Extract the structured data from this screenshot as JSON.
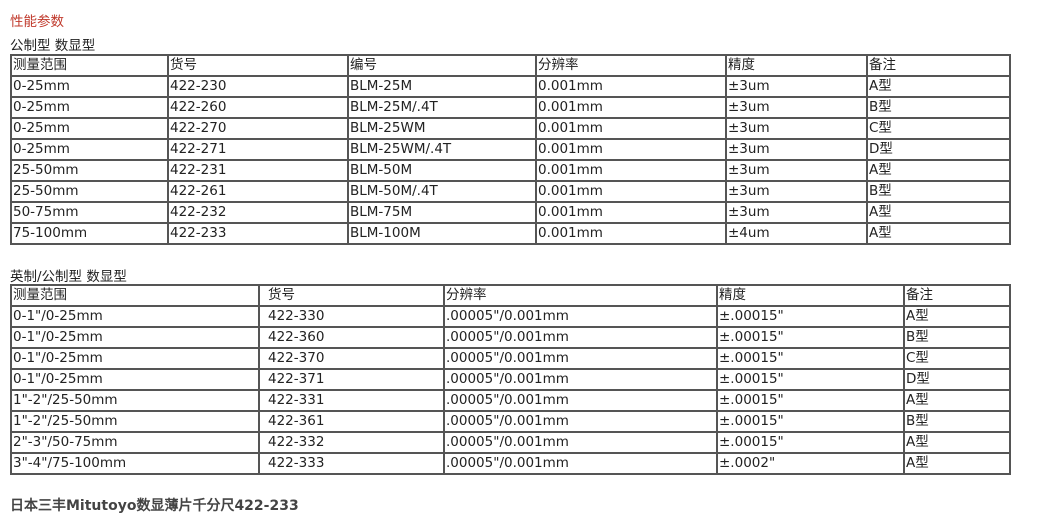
{
  "title": "性能参数",
  "section1": {
    "heading": "公制型 数显型",
    "headers": [
      "测量范围",
      "货号",
      "编号",
      "分辨率",
      "精度",
      "备注"
    ],
    "rows": [
      [
        "0-25mm",
        "422-230",
        "BLM-25M",
        "0.001mm",
        "±3um",
        "A型"
      ],
      [
        "0-25mm",
        "422-260",
        "BLM-25M/.4T",
        "0.001mm",
        "±3um",
        "B型"
      ],
      [
        "0-25mm",
        "422-270",
        "BLM-25WM",
        "0.001mm",
        "±3um",
        "C型"
      ],
      [
        "0-25mm",
        "422-271",
        "BLM-25WM/.4T",
        "0.001mm",
        "±3um",
        "D型"
      ],
      [
        "25-50mm",
        "422-231",
        "BLM-50M",
        "0.001mm",
        "±3um",
        "A型"
      ],
      [
        "25-50mm",
        "422-261",
        "BLM-50M/.4T",
        "0.001mm",
        "±3um",
        "B型"
      ],
      [
        "50-75mm",
        "422-232",
        "BLM-75M",
        "0.001mm",
        "±3um",
        "A型"
      ],
      [
        "75-100mm",
        "422-233",
        "BLM-100M",
        "0.001mm",
        "±4um",
        "A型"
      ]
    ]
  },
  "section2": {
    "heading": "英制/公制型 数显型",
    "headers": [
      "测量范围",
      "货号",
      "分辨率",
      "精度",
      "备注"
    ],
    "rows": [
      [
        "0-1\"/0-25mm",
        "422-330",
        ".00005\"/0.001mm",
        "±.00015\"",
        "A型"
      ],
      [
        "0-1\"/0-25mm",
        "422-360",
        ".00005\"/0.001mm",
        "±.00015\"",
        "B型"
      ],
      [
        "0-1\"/0-25mm",
        "422-370",
        ".00005\"/0.001mm",
        "±.00015\"",
        "C型"
      ],
      [
        "0-1\"/0-25mm",
        "422-371",
        ".00005\"/0.001mm",
        "±.00015\"",
        "D型"
      ],
      [
        "1\"-2\"/25-50mm",
        "422-331",
        ".00005\"/0.001mm",
        "±.00015\"",
        "A型"
      ],
      [
        "1\"-2\"/25-50mm",
        "422-361",
        ".00005\"/0.001mm",
        "±.00015\"",
        "B型"
      ],
      [
        "2\"-3\"/50-75mm",
        "422-332",
        ".00005\"/0.001mm",
        "±.00015\"",
        "A型"
      ],
      [
        "3\"-4\"/75-100mm",
        "422-333",
        ".00005\"/0.001mm",
        "±.0002\"",
        "A型"
      ]
    ]
  },
  "footer": "日本三丰Mitutoyo数显薄片千分尺422-233"
}
